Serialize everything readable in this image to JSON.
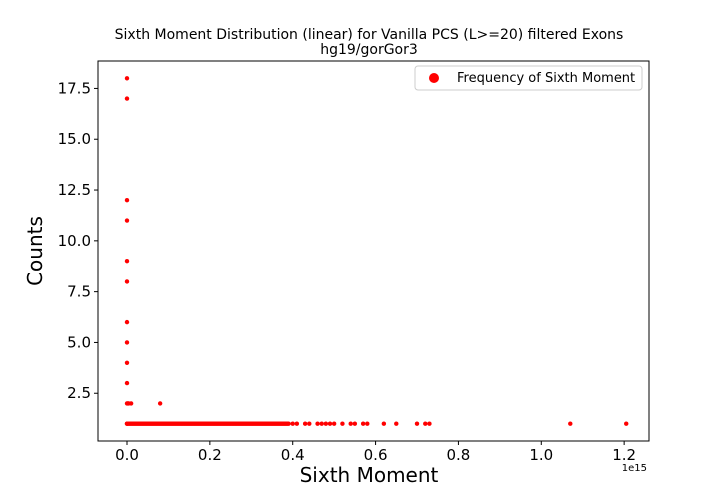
{
  "chart_data": {
    "type": "scatter",
    "title": "Sixth Moment Distribution (linear) for Vanilla PCS (L>=20) filtered Exons",
    "subtitle": "hg19/gorGor3",
    "xlabel": "Sixth Moment",
    "ylabel": "Counts",
    "x_offset_text": "1e15",
    "x_scale": 1000000000000000.0,
    "xlim": [
      -0.07,
      1.26
    ],
    "ylim": [
      0.15,
      18.85
    ],
    "x_ticks": [
      0.0,
      0.2,
      0.4,
      0.6,
      0.8,
      1.0,
      1.2
    ],
    "x_tick_labels": [
      "0.0",
      "0.2",
      "0.4",
      "0.6",
      "0.8",
      "1.0",
      "1.2"
    ],
    "y_ticks": [
      2.5,
      5.0,
      7.5,
      10.0,
      12.5,
      15.0,
      17.5
    ],
    "y_tick_labels": [
      "2.5",
      "5.0",
      "7.5",
      "10.0",
      "12.5",
      "15.0",
      "17.5"
    ],
    "grid": false,
    "legend_position": "top-right",
    "color": "#ff0000",
    "series": [
      {
        "name": "Frequency of Sixth Moment",
        "points": [
          [
            0.0,
            18
          ],
          [
            0.0,
            17
          ],
          [
            0.0,
            12
          ],
          [
            0.0,
            11
          ],
          [
            0.0,
            9
          ],
          [
            0.0,
            8
          ],
          [
            0.0,
            6
          ],
          [
            0.0,
            5
          ],
          [
            0.0,
            4
          ],
          [
            0.0,
            3
          ],
          [
            0.0,
            2
          ],
          [
            0.002,
            2
          ],
          [
            0.004,
            2
          ],
          [
            0.01,
            2
          ],
          [
            0.08,
            2
          ],
          [
            0.0,
            1
          ],
          [
            0.4,
            1
          ],
          [
            0.41,
            1
          ],
          [
            0.43,
            1
          ],
          [
            0.44,
            1
          ],
          [
            0.46,
            1
          ],
          [
            0.47,
            1
          ],
          [
            0.48,
            1
          ],
          [
            0.49,
            1
          ],
          [
            0.5,
            1
          ],
          [
            0.52,
            1
          ],
          [
            0.54,
            1
          ],
          [
            0.55,
            1
          ],
          [
            0.57,
            1
          ],
          [
            0.58,
            1
          ],
          [
            0.62,
            1
          ],
          [
            0.65,
            1
          ],
          [
            0.7,
            1
          ],
          [
            0.72,
            1
          ],
          [
            0.73,
            1
          ],
          [
            1.07,
            1
          ],
          [
            1.205,
            1
          ]
        ],
        "dense_band": {
          "y": 1,
          "x_from": 0.0,
          "x_to": 0.39
        }
      }
    ]
  }
}
